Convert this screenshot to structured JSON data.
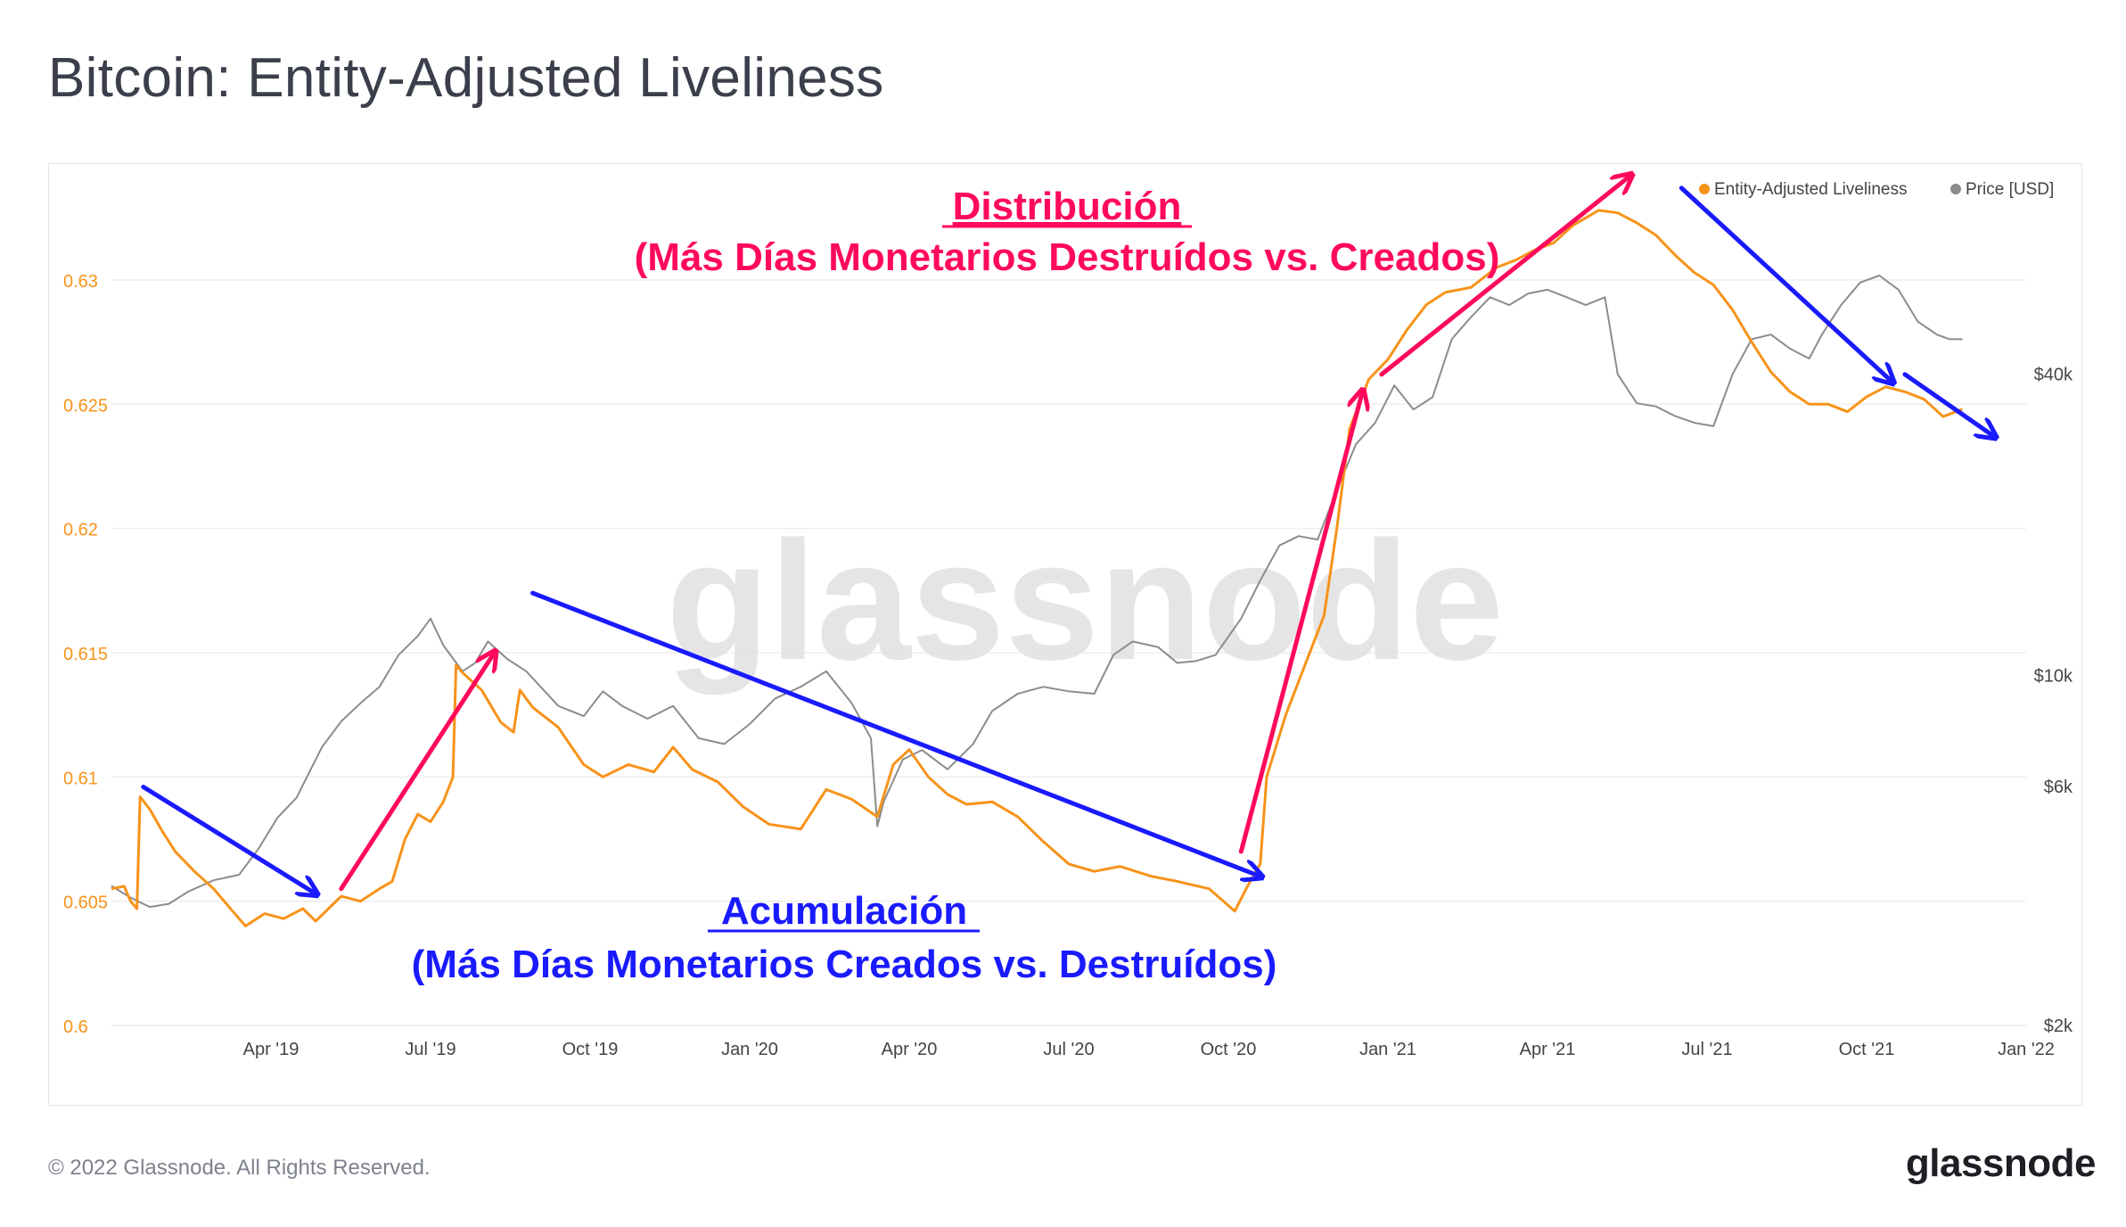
{
  "header": {
    "title": "Bitcoin: Entity-Adjusted Liveliness"
  },
  "footer": {
    "copyright": "© 2022 Glassnode. All Rights Reserved.",
    "brand": "glassnode"
  },
  "watermark": "glassnode",
  "colors": {
    "liveliness": "#f7931a",
    "price": "#8c8c8c",
    "accumulation": "#1a1aff",
    "distribution": "#ff0a5a",
    "left_axis_text": "#f7931a",
    "grid": "#eeeeee"
  },
  "chart_data": {
    "type": "line",
    "title": "Bitcoin: Entity-Adjusted Liveliness",
    "x_range": [
      "2019-01-01",
      "2022-01-01"
    ],
    "x_ticks": [
      {
        "date": 0.25,
        "label": "Apr '19"
      },
      {
        "date": 0.5,
        "label": "Jul '19"
      },
      {
        "date": 0.75,
        "label": "Oct '19"
      },
      {
        "date": 1.0,
        "label": "Jan '20"
      },
      {
        "date": 1.25,
        "label": "Apr '20"
      },
      {
        "date": 1.5,
        "label": "Jul '20"
      },
      {
        "date": 1.75,
        "label": "Oct '20"
      },
      {
        "date": 2.0,
        "label": "Jan '21"
      },
      {
        "date": 2.25,
        "label": "Apr '21"
      },
      {
        "date": 2.5,
        "label": "Jul '21"
      },
      {
        "date": 2.75,
        "label": "Oct '21"
      },
      {
        "date": 3.0,
        "label": "Jan '22"
      }
    ],
    "y_left": {
      "label": "Entity-Adjusted Liveliness",
      "range": [
        0.6,
        0.6333
      ],
      "ticks": [
        "0.6",
        "0.605",
        "0.61",
        "0.615",
        "0.62",
        "0.625",
        "0.63"
      ]
    },
    "y_right": {
      "label": "Price [USD]",
      "scale": "log",
      "range": [
        2000,
        90000
      ],
      "ticks": [
        {
          "value": 2000,
          "label": "$2k"
        },
        {
          "value": 6000,
          "label": "$6k"
        },
        {
          "value": 10000,
          "label": "$10k"
        },
        {
          "value": 40000,
          "label": "$40k"
        }
      ]
    },
    "legend": {
      "position": "top-right",
      "entries": [
        "Entity-Adjusted Liveliness",
        "Price [USD]"
      ]
    },
    "series": [
      {
        "name": "Entity-Adjusted Liveliness",
        "axis": "left",
        "points": [
          [
            0.0,
            0.6055
          ],
          [
            0.02,
            0.6056
          ],
          [
            0.03,
            0.605
          ],
          [
            0.04,
            0.6047
          ],
          [
            0.045,
            0.6092
          ],
          [
            0.06,
            0.6087
          ],
          [
            0.08,
            0.6078
          ],
          [
            0.1,
            0.607
          ],
          [
            0.13,
            0.6062
          ],
          [
            0.16,
            0.6055
          ],
          [
            0.19,
            0.6046
          ],
          [
            0.21,
            0.604
          ],
          [
            0.24,
            0.6045
          ],
          [
            0.27,
            0.6043
          ],
          [
            0.3,
            0.6047
          ],
          [
            0.32,
            0.6042
          ],
          [
            0.36,
            0.6052
          ],
          [
            0.39,
            0.605
          ],
          [
            0.42,
            0.6055
          ],
          [
            0.44,
            0.6058
          ],
          [
            0.46,
            0.6075
          ],
          [
            0.48,
            0.6085
          ],
          [
            0.5,
            0.6082
          ],
          [
            0.52,
            0.609
          ],
          [
            0.535,
            0.61
          ],
          [
            0.54,
            0.6145
          ],
          [
            0.55,
            0.6142
          ],
          [
            0.58,
            0.6135
          ],
          [
            0.61,
            0.6122
          ],
          [
            0.63,
            0.6118
          ],
          [
            0.64,
            0.6135
          ],
          [
            0.66,
            0.6128
          ],
          [
            0.7,
            0.612
          ],
          [
            0.74,
            0.6105
          ],
          [
            0.77,
            0.61
          ],
          [
            0.81,
            0.6105
          ],
          [
            0.85,
            0.6102
          ],
          [
            0.88,
            0.6112
          ],
          [
            0.91,
            0.6103
          ],
          [
            0.95,
            0.6098
          ],
          [
            0.99,
            0.6088
          ],
          [
            1.03,
            0.6081
          ],
          [
            1.08,
            0.6079
          ],
          [
            1.12,
            0.6095
          ],
          [
            1.16,
            0.6091
          ],
          [
            1.2,
            0.6084
          ],
          [
            1.225,
            0.6105
          ],
          [
            1.25,
            0.6111
          ],
          [
            1.28,
            0.61
          ],
          [
            1.31,
            0.6093
          ],
          [
            1.34,
            0.6089
          ],
          [
            1.38,
            0.609
          ],
          [
            1.42,
            0.6084
          ],
          [
            1.46,
            0.6074
          ],
          [
            1.5,
            0.6065
          ],
          [
            1.54,
            0.6062
          ],
          [
            1.58,
            0.6064
          ],
          [
            1.63,
            0.606
          ],
          [
            1.67,
            0.6058
          ],
          [
            1.72,
            0.6055
          ],
          [
            1.76,
            0.6046
          ],
          [
            1.78,
            0.6056
          ],
          [
            1.8,
            0.6065
          ],
          [
            1.81,
            0.61
          ],
          [
            1.84,
            0.6125
          ],
          [
            1.87,
            0.6145
          ],
          [
            1.9,
            0.6165
          ],
          [
            1.92,
            0.62
          ],
          [
            1.94,
            0.624
          ],
          [
            1.97,
            0.626
          ],
          [
            2.0,
            0.6268
          ],
          [
            2.03,
            0.628
          ],
          [
            2.06,
            0.629
          ],
          [
            2.09,
            0.6295
          ],
          [
            2.13,
            0.6297
          ],
          [
            2.17,
            0.6305
          ],
          [
            2.2,
            0.6308
          ],
          [
            2.23,
            0.6312
          ],
          [
            2.26,
            0.6315
          ],
          [
            2.29,
            0.6322
          ],
          [
            2.33,
            0.6328
          ],
          [
            2.36,
            0.6327
          ],
          [
            2.39,
            0.6323
          ],
          [
            2.42,
            0.6318
          ],
          [
            2.45,
            0.631
          ],
          [
            2.48,
            0.6303
          ],
          [
            2.51,
            0.6298
          ],
          [
            2.54,
            0.6288
          ],
          [
            2.57,
            0.6275
          ],
          [
            2.6,
            0.6263
          ],
          [
            2.63,
            0.6255
          ],
          [
            2.66,
            0.625
          ],
          [
            2.69,
            0.625
          ],
          [
            2.72,
            0.6247
          ],
          [
            2.75,
            0.6253
          ],
          [
            2.78,
            0.6257
          ],
          [
            2.81,
            0.6255
          ],
          [
            2.84,
            0.6252
          ],
          [
            2.87,
            0.6245
          ],
          [
            2.9,
            0.6248
          ]
        ]
      },
      {
        "name": "Price [USD]",
        "axis": "right",
        "points": [
          [
            0.0,
            3800
          ],
          [
            0.03,
            3600
          ],
          [
            0.06,
            3450
          ],
          [
            0.09,
            3500
          ],
          [
            0.12,
            3700
          ],
          [
            0.16,
            3900
          ],
          [
            0.2,
            4000
          ],
          [
            0.23,
            4500
          ],
          [
            0.26,
            5200
          ],
          [
            0.29,
            5700
          ],
          [
            0.33,
            7200
          ],
          [
            0.36,
            8100
          ],
          [
            0.39,
            8800
          ],
          [
            0.42,
            9500
          ],
          [
            0.45,
            11000
          ],
          [
            0.48,
            12000
          ],
          [
            0.5,
            13000
          ],
          [
            0.52,
            11500
          ],
          [
            0.55,
            10200
          ],
          [
            0.57,
            10600
          ],
          [
            0.59,
            11700
          ],
          [
            0.62,
            10800
          ],
          [
            0.65,
            10200
          ],
          [
            0.7,
            8700
          ],
          [
            0.74,
            8300
          ],
          [
            0.77,
            9300
          ],
          [
            0.8,
            8700
          ],
          [
            0.84,
            8200
          ],
          [
            0.88,
            8700
          ],
          [
            0.92,
            7500
          ],
          [
            0.96,
            7300
          ],
          [
            1.0,
            8000
          ],
          [
            1.04,
            9000
          ],
          [
            1.08,
            9500
          ],
          [
            1.12,
            10200
          ],
          [
            1.16,
            8800
          ],
          [
            1.19,
            7500
          ],
          [
            1.2,
            5000
          ],
          [
            1.21,
            5600
          ],
          [
            1.24,
            6800
          ],
          [
            1.27,
            7100
          ],
          [
            1.31,
            6500
          ],
          [
            1.35,
            7300
          ],
          [
            1.38,
            8500
          ],
          [
            1.42,
            9200
          ],
          [
            1.46,
            9500
          ],
          [
            1.5,
            9300
          ],
          [
            1.54,
            9200
          ],
          [
            1.57,
            11000
          ],
          [
            1.6,
            11700
          ],
          [
            1.64,
            11400
          ],
          [
            1.67,
            10600
          ],
          [
            1.7,
            10700
          ],
          [
            1.73,
            11000
          ],
          [
            1.77,
            13000
          ],
          [
            1.8,
            15500
          ],
          [
            1.83,
            18200
          ],
          [
            1.86,
            19000
          ],
          [
            1.89,
            18700
          ],
          [
            1.92,
            23500
          ],
          [
            1.95,
            29000
          ],
          [
            1.98,
            32000
          ],
          [
            2.01,
            38000
          ],
          [
            2.04,
            34000
          ],
          [
            2.07,
            36000
          ],
          [
            2.1,
            47000
          ],
          [
            2.13,
            52000
          ],
          [
            2.16,
            57000
          ],
          [
            2.19,
            55000
          ],
          [
            2.22,
            58000
          ],
          [
            2.25,
            59000
          ],
          [
            2.28,
            57000
          ],
          [
            2.31,
            55000
          ],
          [
            2.34,
            57000
          ],
          [
            2.36,
            40000
          ],
          [
            2.39,
            35000
          ],
          [
            2.42,
            34500
          ],
          [
            2.45,
            33000
          ],
          [
            2.48,
            32000
          ],
          [
            2.51,
            31500
          ],
          [
            2.54,
            40000
          ],
          [
            2.57,
            47000
          ],
          [
            2.6,
            48000
          ],
          [
            2.63,
            45000
          ],
          [
            2.66,
            43000
          ],
          [
            2.68,
            48000
          ],
          [
            2.71,
            55000
          ],
          [
            2.74,
            61000
          ],
          [
            2.77,
            63000
          ],
          [
            2.8,
            59000
          ],
          [
            2.83,
            51000
          ],
          [
            2.86,
            48000
          ],
          [
            2.88,
            47000
          ],
          [
            2.9,
            47000
          ]
        ]
      }
    ],
    "annotations": {
      "distribution": {
        "title": "Distribución",
        "subtitle": "(Más Días Monetarios Destruídos vs. Creados)"
      },
      "accumulation": {
        "title": "Acumulación",
        "subtitle": "(Más Días Monetarios Creados vs. Destruídos)"
      }
    },
    "arrows": [
      {
        "type": "accumulation",
        "from": [
          0.05,
          0.6096
        ],
        "to": [
          0.32,
          0.6053
        ]
      },
      {
        "type": "distribution",
        "from": [
          0.36,
          0.6055
        ],
        "to": [
          0.6,
          0.615
        ]
      },
      {
        "type": "accumulation",
        "from": [
          0.66,
          0.6174
        ],
        "to": [
          1.8,
          0.606
        ]
      },
      {
        "type": "distribution",
        "from": [
          1.77,
          0.607
        ],
        "to": [
          1.96,
          0.6255
        ]
      },
      {
        "type": "distribution",
        "from": [
          1.99,
          0.6262
        ],
        "to": [
          2.38,
          0.6342
        ]
      },
      {
        "type": "accumulation",
        "from": [
          2.46,
          0.6337
        ],
        "to": [
          2.79,
          0.6259
        ]
      },
      {
        "type": "accumulation",
        "from": [
          2.81,
          0.6262
        ],
        "to": [
          2.95,
          0.6237
        ]
      }
    ]
  }
}
